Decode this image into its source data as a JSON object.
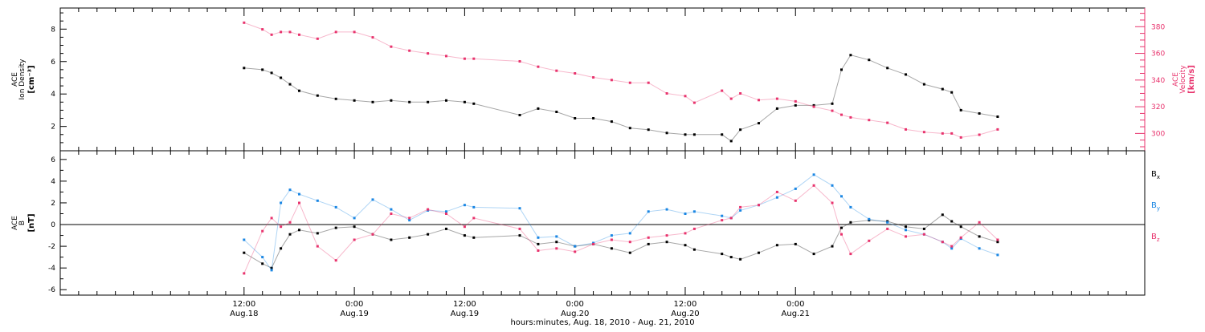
{
  "chart_data": [
    {
      "type": "scatter",
      "panel": "plasma",
      "left_axis": {
        "label_lines": [
          "ACE",
          "Ion Density",
          "[cm⁻³]"
        ],
        "ylim": [
          0.5,
          9.3
        ],
        "ticks": [
          2,
          4,
          6,
          8
        ],
        "tick_labels": [
          "2",
          "4",
          "6",
          "8"
        ]
      },
      "right_axis": {
        "label_lines": [
          "ACE",
          "Velocity",
          "[km/s]"
        ],
        "ylim": [
          287,
          394
        ],
        "ticks": [
          300,
          320,
          340,
          360,
          380
        ],
        "tick_labels": [
          "300",
          "320",
          "340",
          "360",
          "380"
        ],
        "color": "#e8336d"
      },
      "series": [
        {
          "axis": "left",
          "color": "#000000",
          "points": [
            [
              0,
              5.6
            ],
            [
              2,
              5.5
            ],
            [
              3,
              5.3
            ],
            [
              4,
              5.0
            ],
            [
              5,
              4.6
            ],
            [
              6,
              4.2
            ],
            [
              8,
              3.9
            ],
            [
              10,
              3.7
            ],
            [
              12,
              3.6
            ],
            [
              14,
              3.5
            ],
            [
              16,
              3.6
            ],
            [
              18,
              3.5
            ],
            [
              20,
              3.5
            ],
            [
              22,
              3.6
            ],
            [
              24,
              3.5
            ],
            [
              25,
              3.4
            ],
            [
              30,
              2.7
            ],
            [
              32,
              3.1
            ],
            [
              34,
              2.9
            ],
            [
              36,
              2.5
            ],
            [
              38,
              2.5
            ],
            [
              40,
              2.3
            ],
            [
              42,
              1.9
            ],
            [
              44,
              1.8
            ],
            [
              46,
              1.6
            ],
            [
              48,
              1.5
            ],
            [
              49,
              1.5
            ],
            [
              52,
              1.5
            ],
            [
              53,
              1.1
            ],
            [
              54,
              1.8
            ],
            [
              56,
              2.2
            ],
            [
              58,
              3.1
            ],
            [
              60,
              3.3
            ],
            [
              62,
              3.3
            ],
            [
              64,
              3.4
            ],
            [
              65,
              5.5
            ],
            [
              66,
              6.4
            ],
            [
              68,
              6.1
            ],
            [
              70,
              5.6
            ],
            [
              72,
              5.2
            ],
            [
              74,
              4.6
            ],
            [
              76,
              4.3
            ],
            [
              77,
              4.1
            ],
            [
              78,
              3.0
            ],
            [
              80,
              2.8
            ],
            [
              82,
              2.6
            ]
          ]
        },
        {
          "axis": "right",
          "color": "#e8336d",
          "points": [
            [
              0,
              383
            ],
            [
              2,
              378
            ],
            [
              3,
              374
            ],
            [
              4,
              376
            ],
            [
              5,
              376
            ],
            [
              6,
              374
            ],
            [
              8,
              371
            ],
            [
              10,
              376
            ],
            [
              12,
              376
            ],
            [
              14,
              372
            ],
            [
              16,
              365
            ],
            [
              18,
              362
            ],
            [
              20,
              360
            ],
            [
              22,
              358
            ],
            [
              24,
              356
            ],
            [
              25,
              356
            ],
            [
              30,
              354
            ],
            [
              32,
              350
            ],
            [
              34,
              347
            ],
            [
              36,
              345
            ],
            [
              38,
              342
            ],
            [
              40,
              340
            ],
            [
              42,
              338
            ],
            [
              44,
              338
            ],
            [
              46,
              330
            ],
            [
              48,
              328
            ],
            [
              49,
              323
            ],
            [
              52,
              332
            ],
            [
              53,
              326
            ],
            [
              54,
              330
            ],
            [
              56,
              325
            ],
            [
              58,
              326
            ],
            [
              60,
              324
            ],
            [
              62,
              320
            ],
            [
              64,
              317
            ],
            [
              65,
              314
            ],
            [
              66,
              312
            ],
            [
              68,
              310
            ],
            [
              70,
              308
            ],
            [
              72,
              303
            ],
            [
              74,
              301
            ],
            [
              76,
              300
            ],
            [
              77,
              300
            ],
            [
              78,
              297
            ],
            [
              80,
              299
            ],
            [
              82,
              303
            ]
          ]
        }
      ],
      "x_range_hours": [
        -20,
        98
      ]
    },
    {
      "type": "scatter",
      "panel": "magnetic-field",
      "left_axis": {
        "label_lines": [
          "ACE",
          "B",
          "[nT]"
        ],
        "ylim": [
          -6.5,
          6.8
        ],
        "ticks": [
          -6,
          -4,
          -2,
          0,
          2,
          4,
          6
        ],
        "tick_labels": [
          "-6",
          "-4",
          "-2",
          "0",
          "2",
          "4",
          "6"
        ],
        "zero_line": true
      },
      "series": [
        {
          "name": "Bx",
          "label_main": "B",
          "label_sub": "x",
          "color": "#000000",
          "points": [
            [
              0,
              -2.6
            ],
            [
              2,
              -3.6
            ],
            [
              3,
              -4.0
            ],
            [
              4,
              -2.2
            ],
            [
              5,
              -0.9
            ],
            [
              6,
              -0.5
            ],
            [
              8,
              -0.8
            ],
            [
              10,
              -0.3
            ],
            [
              12,
              -0.2
            ],
            [
              14,
              -0.9
            ],
            [
              16,
              -1.4
            ],
            [
              18,
              -1.2
            ],
            [
              20,
              -0.9
            ],
            [
              22,
              -0.4
            ],
            [
              24,
              -1.0
            ],
            [
              25,
              -1.2
            ],
            [
              30,
              -1.0
            ],
            [
              32,
              -1.8
            ],
            [
              34,
              -1.6
            ],
            [
              36,
              -2.0
            ],
            [
              38,
              -1.8
            ],
            [
              40,
              -2.2
            ],
            [
              42,
              -2.6
            ],
            [
              44,
              -1.8
            ],
            [
              46,
              -1.6
            ],
            [
              48,
              -1.9
            ],
            [
              49,
              -2.3
            ],
            [
              52,
              -2.7
            ],
            [
              53,
              -3.0
            ],
            [
              54,
              -3.2
            ],
            [
              56,
              -2.6
            ],
            [
              58,
              -1.9
            ],
            [
              60,
              -1.8
            ],
            [
              62,
              -2.7
            ],
            [
              64,
              -2.0
            ],
            [
              65,
              -0.3
            ],
            [
              66,
              0.2
            ],
            [
              68,
              0.4
            ],
            [
              70,
              0.3
            ],
            [
              72,
              -0.2
            ],
            [
              74,
              -0.4
            ],
            [
              76,
              0.9
            ],
            [
              77,
              0.3
            ],
            [
              78,
              -0.2
            ],
            [
              80,
              -1.1
            ],
            [
              82,
              -1.6
            ]
          ]
        },
        {
          "name": "By",
          "label_main": "B",
          "label_sub": "y",
          "color": "#1a86e3",
          "points": [
            [
              0,
              -1.4
            ],
            [
              2,
              -3.0
            ],
            [
              3,
              -4.2
            ],
            [
              4,
              2.0
            ],
            [
              5,
              3.2
            ],
            [
              6,
              2.8
            ],
            [
              8,
              2.2
            ],
            [
              10,
              1.6
            ],
            [
              12,
              0.6
            ],
            [
              14,
              2.3
            ],
            [
              16,
              1.4
            ],
            [
              18,
              0.4
            ],
            [
              20,
              1.3
            ],
            [
              22,
              1.2
            ],
            [
              24,
              1.8
            ],
            [
              25,
              1.6
            ],
            [
              30,
              1.5
            ],
            [
              32,
              -1.2
            ],
            [
              34,
              -1.1
            ],
            [
              36,
              -2.0
            ],
            [
              38,
              -1.7
            ],
            [
              40,
              -1.0
            ],
            [
              42,
              -0.8
            ],
            [
              44,
              1.2
            ],
            [
              46,
              1.4
            ],
            [
              48,
              1.0
            ],
            [
              49,
              1.2
            ],
            [
              52,
              0.8
            ],
            [
              53,
              0.6
            ],
            [
              54,
              1.3
            ],
            [
              56,
              1.8
            ],
            [
              58,
              2.5
            ],
            [
              60,
              3.3
            ],
            [
              62,
              4.6
            ],
            [
              64,
              3.6
            ],
            [
              65,
              2.6
            ],
            [
              66,
              1.6
            ],
            [
              68,
              0.5
            ],
            [
              70,
              0.2
            ],
            [
              72,
              -0.5
            ],
            [
              74,
              -0.9
            ],
            [
              76,
              -1.6
            ],
            [
              77,
              -2.2
            ],
            [
              78,
              -1.3
            ],
            [
              80,
              -2.2
            ],
            [
              82,
              -2.8
            ]
          ]
        },
        {
          "name": "Bz",
          "label_main": "B",
          "label_sub": "z",
          "color": "#e8336d",
          "points": [
            [
              0,
              -4.5
            ],
            [
              2,
              -0.6
            ],
            [
              3,
              0.6
            ],
            [
              4,
              -0.2
            ],
            [
              5,
              0.2
            ],
            [
              6,
              2.0
            ],
            [
              8,
              -2.0
            ],
            [
              10,
              -3.3
            ],
            [
              12,
              -1.4
            ],
            [
              14,
              -0.9
            ],
            [
              16,
              1.0
            ],
            [
              18,
              0.6
            ],
            [
              20,
              1.4
            ],
            [
              22,
              1.0
            ],
            [
              24,
              -0.2
            ],
            [
              25,
              0.6
            ],
            [
              30,
              -0.4
            ],
            [
              32,
              -2.4
            ],
            [
              34,
              -2.2
            ],
            [
              36,
              -2.5
            ],
            [
              38,
              -1.8
            ],
            [
              40,
              -1.4
            ],
            [
              42,
              -1.6
            ],
            [
              44,
              -1.2
            ],
            [
              46,
              -1.0
            ],
            [
              48,
              -0.8
            ],
            [
              49,
              -0.4
            ],
            [
              52,
              0.4
            ],
            [
              53,
              0.6
            ],
            [
              54,
              1.6
            ],
            [
              56,
              1.8
            ],
            [
              58,
              3.0
            ],
            [
              60,
              2.2
            ],
            [
              62,
              3.6
            ],
            [
              64,
              2.0
            ],
            [
              65,
              -0.9
            ],
            [
              66,
              -2.7
            ],
            [
              68,
              -1.5
            ],
            [
              70,
              -0.4
            ],
            [
              72,
              -1.1
            ],
            [
              74,
              -0.9
            ],
            [
              76,
              -1.6
            ],
            [
              77,
              -2.0
            ],
            [
              78,
              -1.2
            ],
            [
              80,
              0.2
            ],
            [
              82,
              -1.4
            ]
          ]
        }
      ],
      "x_range_hours": [
        -20,
        98
      ]
    }
  ],
  "x_axis": {
    "ticks": [
      {
        "hours": 0,
        "time": "12:00",
        "date": "Aug.18"
      },
      {
        "hours": 12,
        "time": "0:00",
        "date": "Aug.19"
      },
      {
        "hours": 24,
        "time": "12:00",
        "date": "Aug.19"
      },
      {
        "hours": 36,
        "time": "0:00",
        "date": "Aug.20"
      },
      {
        "hours": 48,
        "time": "12:00",
        "date": "Aug.20"
      },
      {
        "hours": 60,
        "time": "0:00",
        "date": "Aug.21"
      }
    ],
    "minor_step_hours": 2,
    "title": "hours:minutes, Aug. 18, 2010 - Aug. 21, 2010"
  }
}
